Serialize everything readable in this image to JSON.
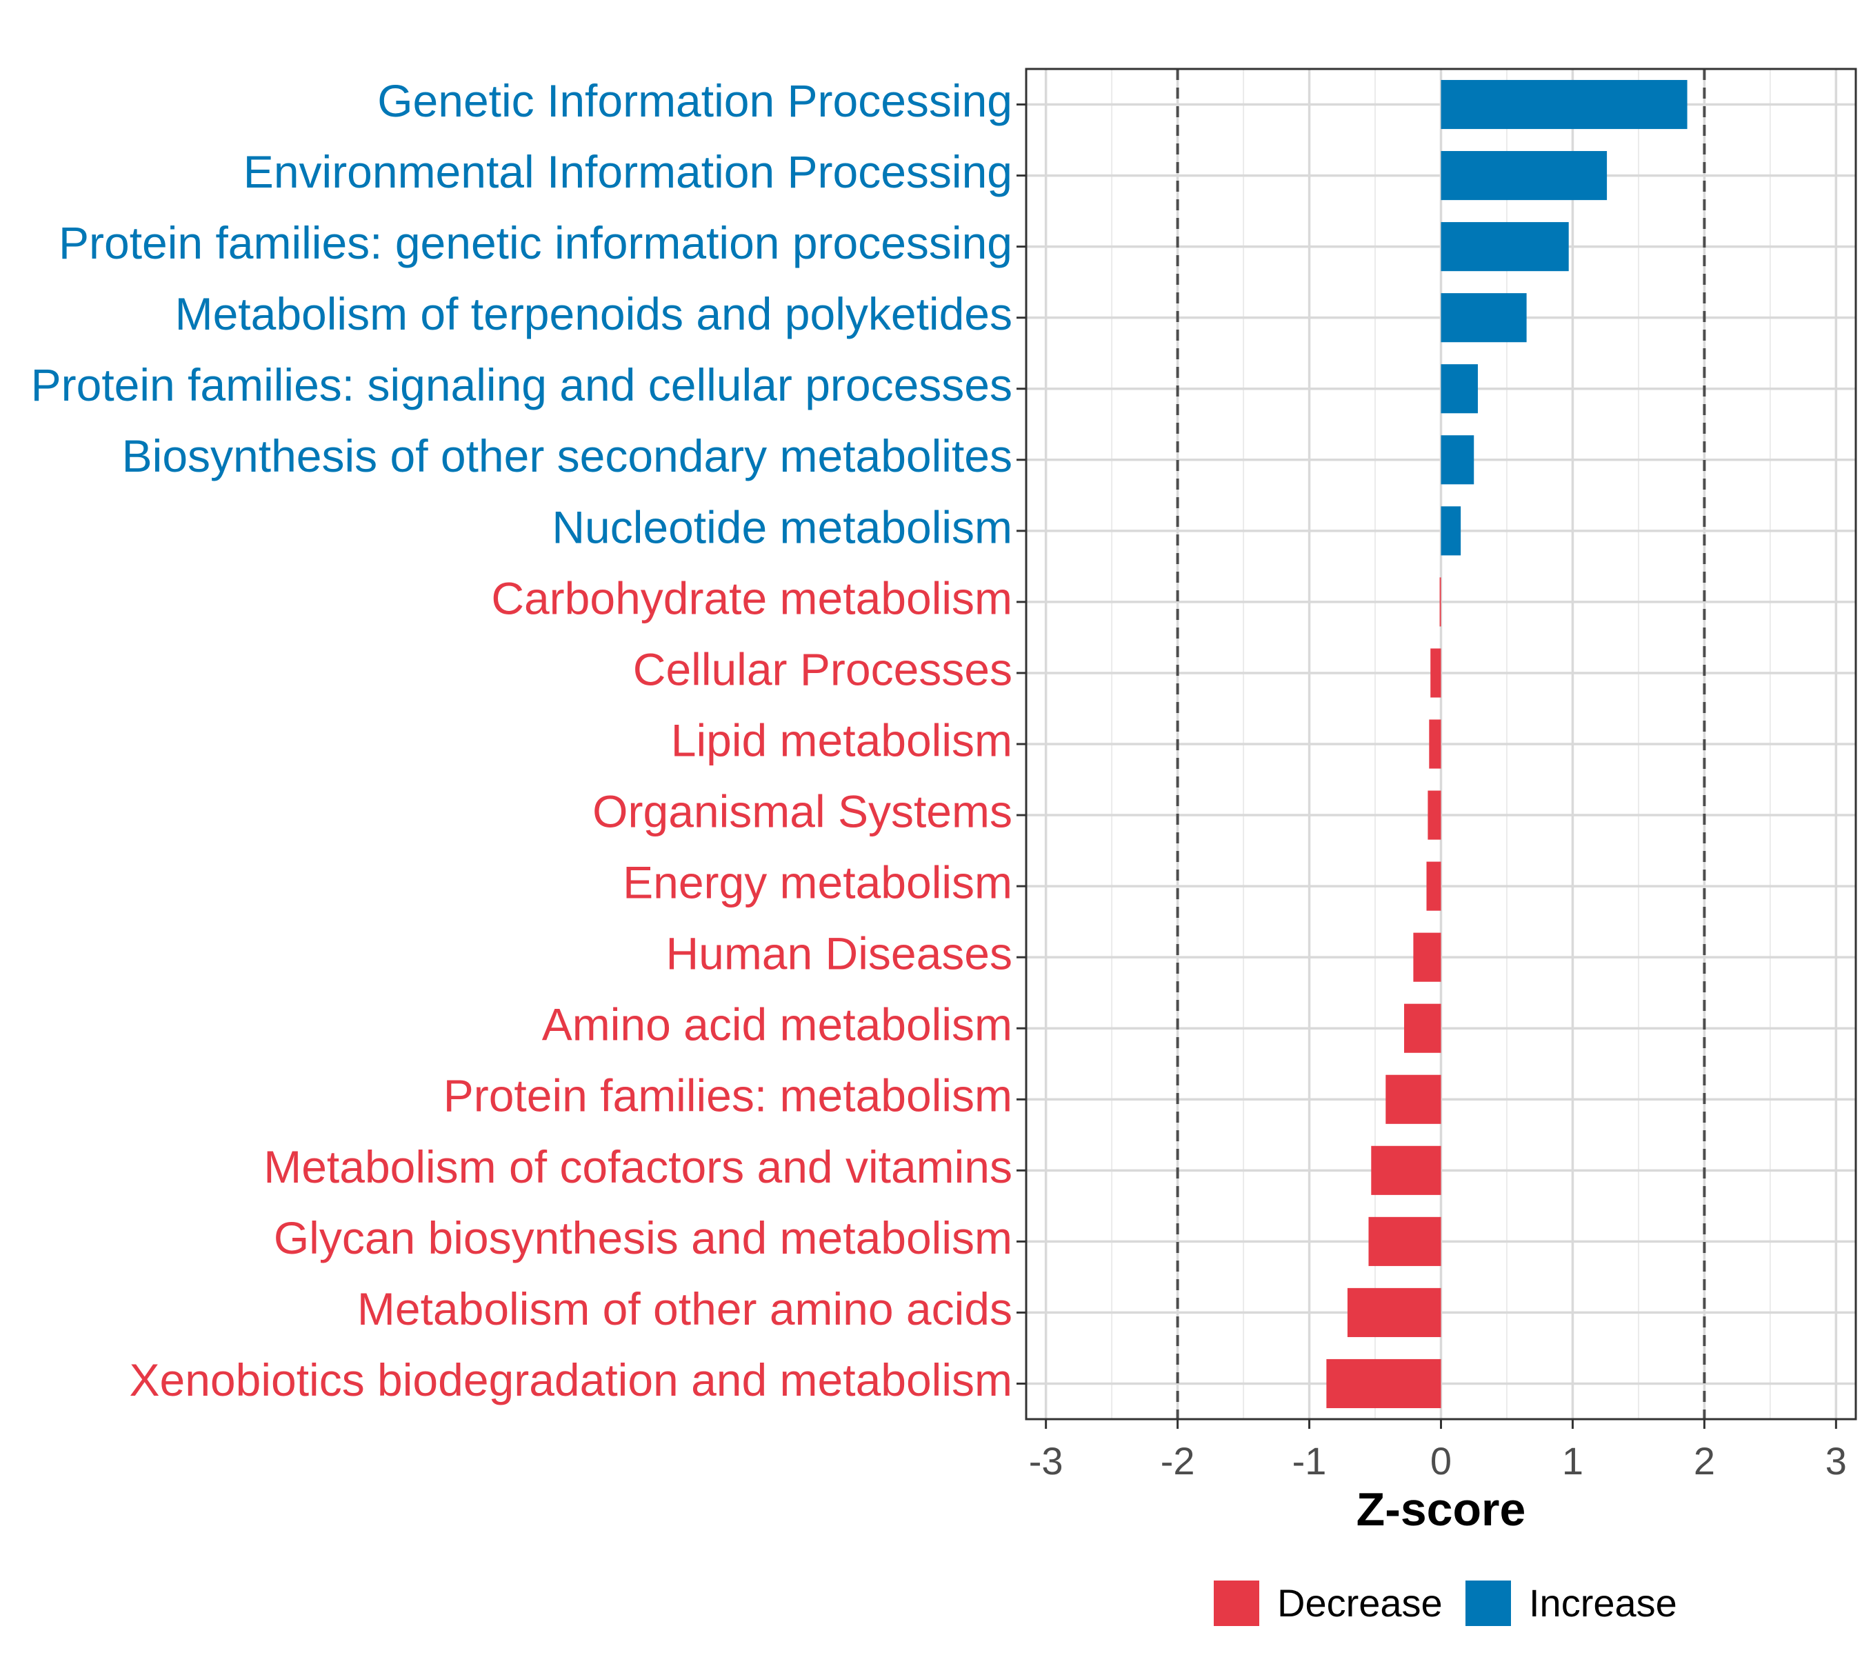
{
  "chart_data": {
    "type": "bar",
    "orientation": "horizontal",
    "xlabel": "Z-score",
    "xlim": [
      -3.15,
      3.15
    ],
    "xticks": [
      -3,
      -2,
      -1,
      0,
      1,
      2,
      3
    ],
    "xtick_labels": [
      "-3",
      "-2",
      "-1",
      "0",
      "1",
      "2",
      "3"
    ],
    "reference_lines": [
      -2,
      2
    ],
    "grid": true,
    "colors": {
      "Decrease": "#E63946",
      "Increase": "#0077B6"
    },
    "categories": [
      "Genetic Information Processing",
      "Environmental Information Processing",
      "Protein families: genetic information processing",
      "Metabolism of terpenoids and polyketides",
      "Protein families: signaling and cellular processes",
      "Biosynthesis of other secondary metabolites",
      "Nucleotide metabolism",
      "Carbohydrate metabolism",
      "Cellular Processes",
      "Lipid metabolism",
      "Organismal Systems",
      "Energy metabolism",
      "Human Diseases",
      "Amino acid metabolism",
      "Protein families: metabolism",
      "Metabolism of cofactors and vitamins",
      "Glycan biosynthesis and metabolism",
      "Metabolism of other amino acids",
      "Xenobiotics biodegradation and metabolism"
    ],
    "values": [
      1.87,
      1.26,
      0.97,
      0.65,
      0.28,
      0.25,
      0.15,
      -0.01,
      -0.08,
      -0.09,
      -0.1,
      -0.11,
      -0.21,
      -0.28,
      -0.42,
      -0.53,
      -0.55,
      -0.71,
      -0.87
    ],
    "groups": [
      "Increase",
      "Increase",
      "Increase",
      "Increase",
      "Increase",
      "Increase",
      "Increase",
      "Decrease",
      "Decrease",
      "Decrease",
      "Decrease",
      "Decrease",
      "Decrease",
      "Decrease",
      "Decrease",
      "Decrease",
      "Decrease",
      "Decrease",
      "Decrease"
    ],
    "legend": {
      "position": "bottom",
      "entries": [
        {
          "label": "Decrease",
          "color": "#E63946"
        },
        {
          "label": "Increase",
          "color": "#0077B6"
        }
      ]
    }
  }
}
